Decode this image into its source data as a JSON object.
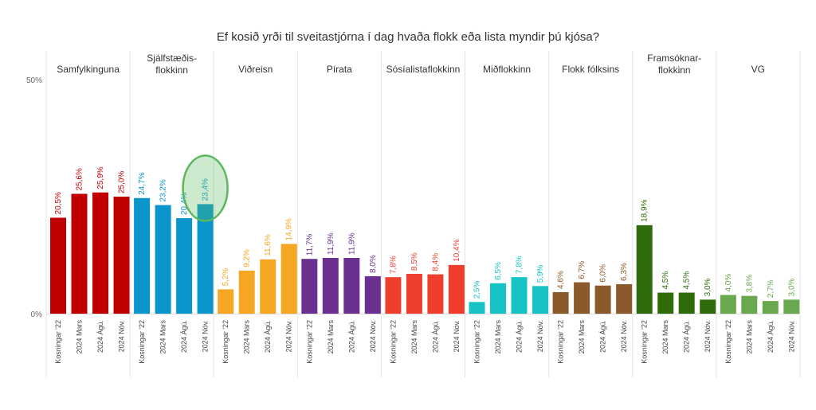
{
  "chart_data": {
    "type": "bar",
    "title": "Ef kosið yrði til sveitastjórna í dag hvaða flokk eða lista myndir þú kjósa?",
    "ylim": [
      0,
      50
    ],
    "y_ticks": [
      "0%",
      "50%"
    ],
    "y_tick_values": [
      0,
      50
    ],
    "grid": false,
    "categories": [
      "Kosningar '22",
      "2024 Mars",
      "2024 Ágú.",
      "2024 Nóv."
    ],
    "series": [
      {
        "name": "Samfylkinguna",
        "color": "#c00000",
        "values": [
          20.5,
          25.6,
          25.9,
          25.0
        ],
        "labels": [
          "20,5%",
          "25,6%",
          "25,9%",
          "25,0%"
        ]
      },
      {
        "name": "Sjálfstæðis-\nflokkinn",
        "color": "#0a95cd",
        "values": [
          24.7,
          23.2,
          20.4,
          23.4
        ],
        "labels": [
          "24,7%",
          "23,2%",
          "20,4%",
          "23,4%"
        ],
        "highlight_index": 3
      },
      {
        "name": "Viðreisn",
        "color": "#f5a623",
        "values": [
          5.2,
          9.2,
          11.6,
          14.9
        ],
        "labels": [
          "5,2%",
          "9,2%",
          "11,6%",
          "14,9%"
        ]
      },
      {
        "name": "Pírata",
        "color": "#6a2f8f",
        "values": [
          11.7,
          11.9,
          11.9,
          8.0
        ],
        "labels": [
          "11,7%",
          "11,9%",
          "11,9%",
          "8,0%"
        ]
      },
      {
        "name": "Sósíalistaflokkinn",
        "color": "#ef3e2e",
        "values": [
          7.8,
          8.5,
          8.4,
          10.4
        ],
        "labels": [
          "7,8%",
          "8,5%",
          "8,4%",
          "10,4%"
        ]
      },
      {
        "name": "Miðflokkinn",
        "color": "#17c3c4",
        "values": [
          2.5,
          6.5,
          7.8,
          5.9
        ],
        "labels": [
          "2,5%",
          "6,5%",
          "7,8%",
          "5,9%"
        ]
      },
      {
        "name": "Flokk fólksins",
        "color": "#8b5a2b",
        "values": [
          4.6,
          6.7,
          6.0,
          6.3
        ],
        "labels": [
          "4,6%",
          "6,7%",
          "6,0%",
          "6,3%"
        ]
      },
      {
        "name": "Framsóknar-\nflokkinn",
        "color": "#2e6b0a",
        "values": [
          18.9,
          4.5,
          4.5,
          3.0
        ],
        "labels": [
          "18,9%",
          "4,5%",
          "4,5%",
          "3,0%"
        ]
      },
      {
        "name": "VG",
        "color": "#6aa84f",
        "values": [
          4.0,
          3.8,
          2.7,
          3.0
        ],
        "labels": [
          "4,0%",
          "3,8%",
          "2,7%",
          "3,0%"
        ]
      }
    ],
    "highlight_color": "#5cb85c"
  }
}
